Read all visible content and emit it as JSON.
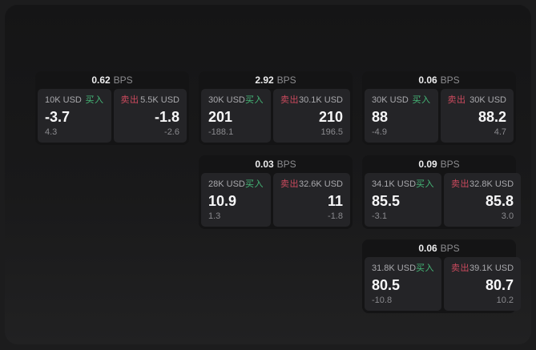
{
  "labels": {
    "buy": "买入",
    "sell": "卖出",
    "bps_unit": "BPS"
  },
  "colors": {
    "buy": "#45b878",
    "sell": "#cc4a5e"
  },
  "cards": [
    {
      "bps": "0.62",
      "buy": {
        "amount": "10K USD",
        "value": "-3.7",
        "delta": "4.3"
      },
      "sell": {
        "amount": "5.5K USD",
        "value": "-1.8",
        "delta": "-2.6"
      }
    },
    {
      "bps": "2.92",
      "buy": {
        "amount": "30K USD",
        "value": "201",
        "delta": "-188.1"
      },
      "sell": {
        "amount": "30.1K USD",
        "value": "210",
        "delta": "196.5"
      }
    },
    {
      "bps": "0.06",
      "buy": {
        "amount": "30K USD",
        "value": "88",
        "delta": "-4.9"
      },
      "sell": {
        "amount": "30K USD",
        "value": "88.2",
        "delta": "4.7"
      }
    },
    {
      "bps": "0.03",
      "buy": {
        "amount": "28K USD",
        "value": "10.9",
        "delta": "1.3"
      },
      "sell": {
        "amount": "32.6K USD",
        "value": "11",
        "delta": "-1.8"
      }
    },
    {
      "bps": "0.09",
      "buy": {
        "amount": "34.1K USD",
        "value": "85.5",
        "delta": "-3.1"
      },
      "sell": {
        "amount": "32.8K USD",
        "value": "85.8",
        "delta": "3.0"
      }
    },
    {
      "bps": "0.06",
      "buy": {
        "amount": "31.8K USD",
        "value": "80.5",
        "delta": "-10.8"
      },
      "sell": {
        "amount": "39.1K USD",
        "value": "80.7",
        "delta": "10.2"
      }
    }
  ]
}
